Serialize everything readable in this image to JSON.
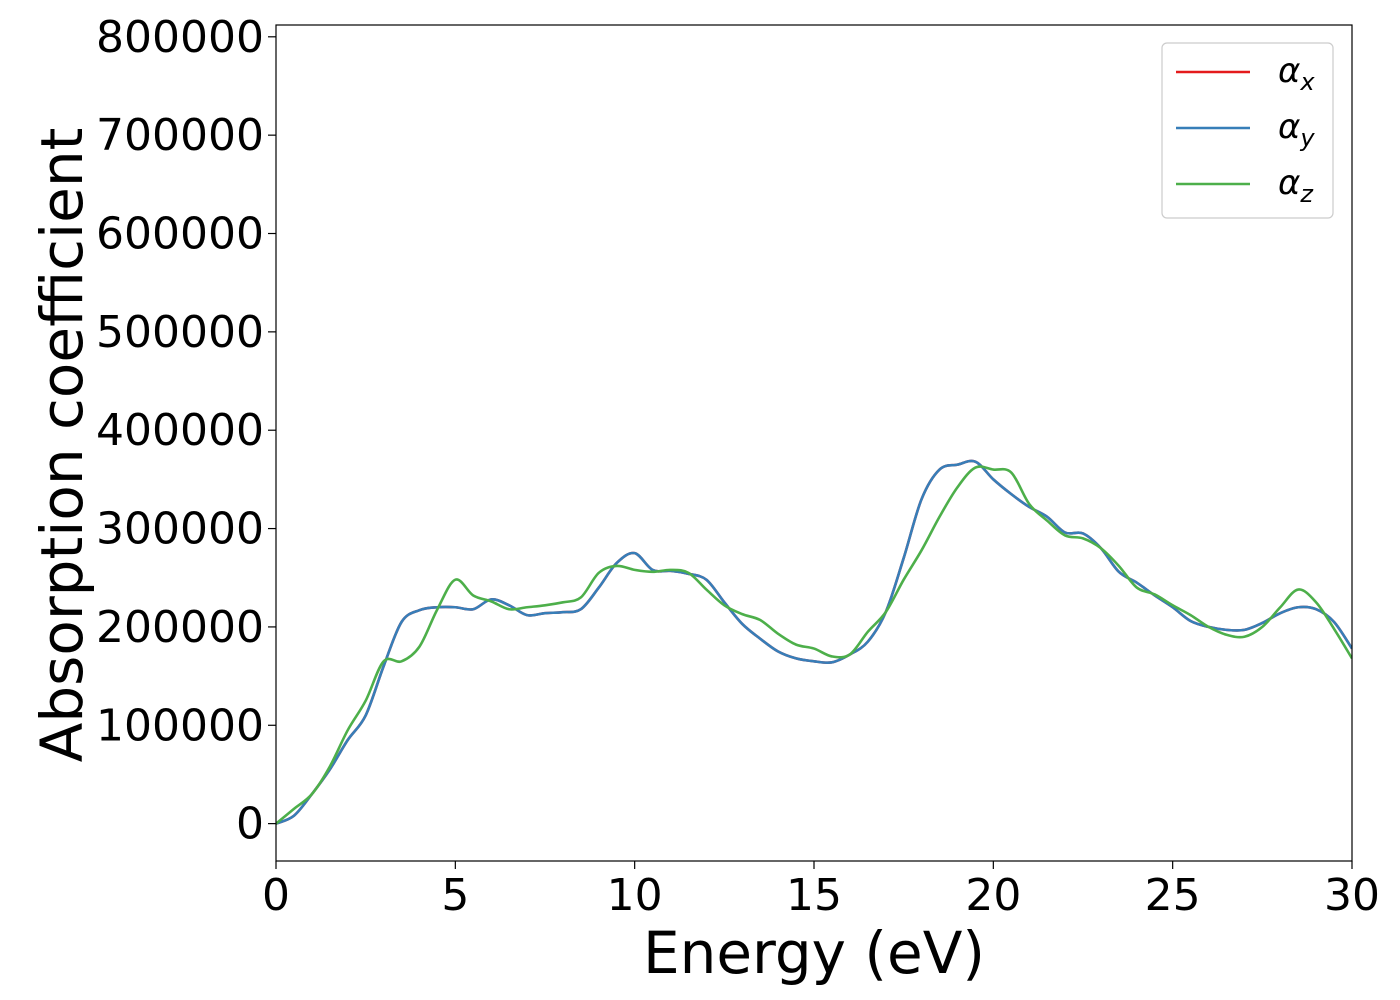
{
  "chart_data": {
    "type": "line",
    "title": "",
    "xlabel": "Energy (eV)",
    "ylabel": "Absorption coefficient",
    "xlim": [
      0,
      30
    ],
    "ylim": [
      -38000,
      812000
    ],
    "xticks": [
      0,
      5,
      10,
      15,
      20,
      25,
      30
    ],
    "xtick_labels": [
      "0",
      "5",
      "10",
      "15",
      "20",
      "25",
      "30"
    ],
    "yticks": [
      0,
      100000,
      200000,
      300000,
      400000,
      500000,
      600000,
      700000,
      800000
    ],
    "ytick_labels": [
      "0",
      "100000",
      "200000",
      "300000",
      "400000",
      "500000",
      "600000",
      "700000",
      "800000"
    ],
    "grid": false,
    "legend_position": "top-right",
    "series": [
      {
        "name": "α",
        "subscript": "x",
        "color": "#e41a1c",
        "x": [
          0,
          0.5,
          1,
          1.5,
          2,
          2.5,
          3,
          3.5,
          4,
          4.5,
          5,
          5.5,
          6,
          6.5,
          7,
          7.5,
          8,
          8.5,
          9,
          9.5,
          10,
          10.5,
          11,
          11.5,
          12,
          12.5,
          13,
          13.5,
          14,
          14.5,
          15,
          15.5,
          16,
          16.5,
          17,
          17.5,
          18,
          18.5,
          19,
          19.5,
          20,
          20.5,
          21,
          21.5,
          22,
          22.5,
          23,
          23.5,
          24,
          24.5,
          25,
          25.5,
          26,
          26.5,
          27,
          27.5,
          28,
          28.5,
          29,
          29.5,
          30
        ],
        "y": [
          0,
          8000,
          30000,
          55000,
          85000,
          110000,
          160000,
          205000,
          217000,
          220000,
          220000,
          218000,
          228000,
          222000,
          212000,
          214000,
          215000,
          218000,
          240000,
          265000,
          275000,
          258000,
          257000,
          254000,
          248000,
          225000,
          203000,
          188000,
          175000,
          168000,
          165000,
          164000,
          172000,
          185000,
          215000,
          270000,
          330000,
          360000,
          365000,
          368000,
          350000,
          335000,
          322000,
          312000,
          296000,
          295000,
          280000,
          256000,
          245000,
          232000,
          220000,
          206000,
          200000,
          197000,
          197000,
          204000,
          214000,
          220000,
          218000,
          205000,
          178000
        ]
      },
      {
        "name": "α",
        "subscript": "y",
        "color": "#377eb8",
        "x": [
          0,
          0.5,
          1,
          1.5,
          2,
          2.5,
          3,
          3.5,
          4,
          4.5,
          5,
          5.5,
          6,
          6.5,
          7,
          7.5,
          8,
          8.5,
          9,
          9.5,
          10,
          10.5,
          11,
          11.5,
          12,
          12.5,
          13,
          13.5,
          14,
          14.5,
          15,
          15.5,
          16,
          16.5,
          17,
          17.5,
          18,
          18.5,
          19,
          19.5,
          20,
          20.5,
          21,
          21.5,
          22,
          22.5,
          23,
          23.5,
          24,
          24.5,
          25,
          25.5,
          26,
          26.5,
          27,
          27.5,
          28,
          28.5,
          29,
          29.5,
          30
        ],
        "y": [
          0,
          8000,
          30000,
          55000,
          85000,
          110000,
          160000,
          205000,
          217000,
          220000,
          220000,
          218000,
          228000,
          222000,
          212000,
          214000,
          215000,
          218000,
          240000,
          265000,
          275000,
          258000,
          257000,
          254000,
          248000,
          225000,
          203000,
          188000,
          175000,
          168000,
          165000,
          164000,
          172000,
          185000,
          215000,
          270000,
          330000,
          360000,
          365000,
          368000,
          350000,
          335000,
          322000,
          312000,
          296000,
          295000,
          280000,
          256000,
          245000,
          232000,
          220000,
          206000,
          200000,
          197000,
          197000,
          204000,
          214000,
          220000,
          218000,
          205000,
          178000
        ]
      },
      {
        "name": "α",
        "subscript": "z",
        "color": "#4daf4a",
        "x": [
          0,
          0.5,
          1,
          1.5,
          2,
          2.5,
          3,
          3.5,
          4,
          4.5,
          5,
          5.5,
          6,
          6.5,
          7,
          7.5,
          8,
          8.5,
          9,
          9.5,
          10,
          10.5,
          11,
          11.5,
          12,
          12.5,
          13,
          13.5,
          14,
          14.5,
          15,
          15.5,
          16,
          16.5,
          17,
          17.5,
          18,
          18.5,
          19,
          19.5,
          20,
          20.5,
          21,
          21.5,
          22,
          22.5,
          23,
          23.5,
          24,
          24.5,
          25,
          25.5,
          26,
          26.5,
          27,
          27.5,
          28,
          28.5,
          29,
          29.5,
          30
        ],
        "y": [
          0,
          15000,
          30000,
          58000,
          95000,
          125000,
          165000,
          165000,
          180000,
          218000,
          248000,
          232000,
          226000,
          218000,
          220000,
          222000,
          225000,
          230000,
          255000,
          262000,
          258000,
          256000,
          258000,
          255000,
          238000,
          222000,
          213000,
          207000,
          193000,
          182000,
          178000,
          170000,
          172000,
          195000,
          215000,
          248000,
          278000,
          312000,
          342000,
          362000,
          360000,
          357000,
          325000,
          308000,
          293000,
          290000,
          280000,
          262000,
          240000,
          233000,
          222000,
          212000,
          200000,
          192000,
          190000,
          200000,
          220000,
          238000,
          225000,
          198000,
          168000
        ]
      }
    ]
  }
}
